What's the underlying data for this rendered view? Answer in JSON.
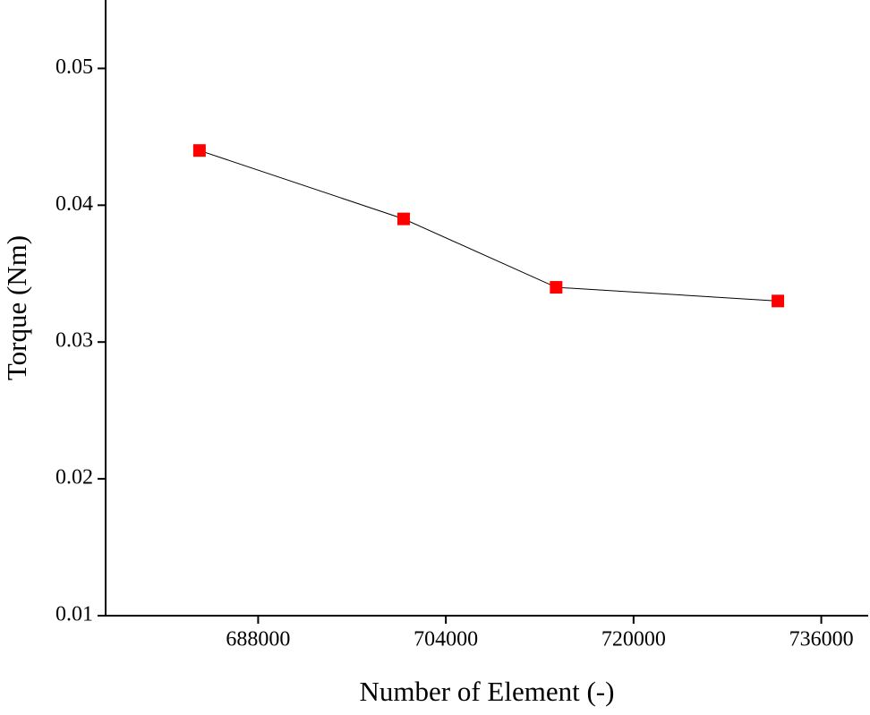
{
  "chart_data": {
    "type": "line",
    "x_label": "Number of Element (-)",
    "y_label": "Torque (Nm)",
    "x": [
      683000,
      700400,
      713400,
      732300
    ],
    "series": [
      {
        "values": [
          0.044,
          0.039,
          0.034,
          0.033
        ],
        "color": "#ff0000",
        "line_color": "#000000",
        "marker": "square"
      }
    ],
    "xlim": [
      675000,
      740000
    ],
    "xticks": [
      688000,
      704000,
      720000,
      736000
    ],
    "ylim": [
      0.01,
      0.055
    ],
    "yticks": [
      0.01,
      0.02,
      0.03,
      0.04,
      0.05
    ],
    "grid": false
  }
}
